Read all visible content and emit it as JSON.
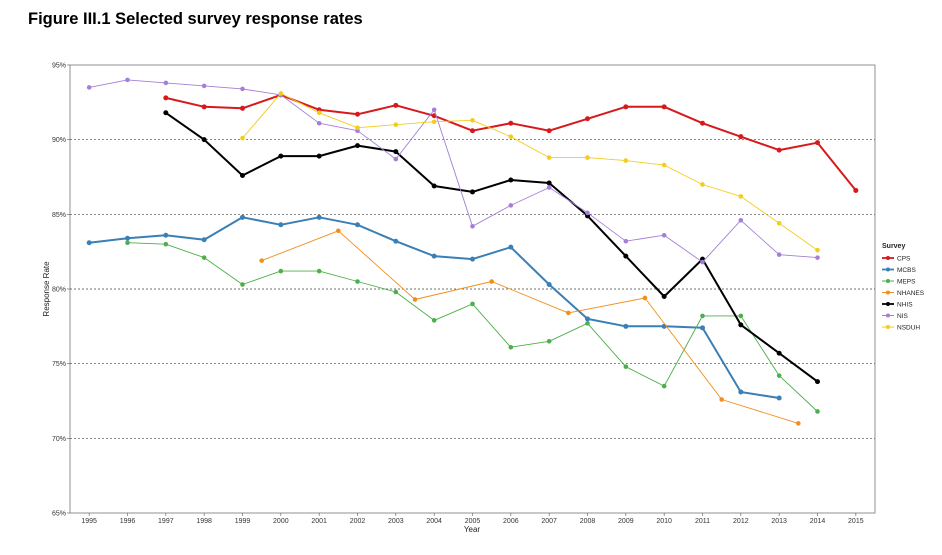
{
  "figure_title": "Figure III.1 Selected survey response rates",
  "chart_data": {
    "type": "line",
    "title": "Figure III.1 Selected survey response rates",
    "xlabel": "Year",
    "ylabel": "Response Rate",
    "xlim": [
      1994.5,
      2015.5
    ],
    "ylim": [
      65,
      95
    ],
    "x_ticks": [
      "1995",
      "1996",
      "1997",
      "1998",
      "1999",
      "2000",
      "2001",
      "2002",
      "2003",
      "2004",
      "2005",
      "2006",
      "2007",
      "2008",
      "2009",
      "2010",
      "2011",
      "2012",
      "2013",
      "2014",
      "2015"
    ],
    "y_ticks": [
      {
        "value": 65,
        "label": "65%"
      },
      {
        "value": 70,
        "label": "70%"
      },
      {
        "value": 75,
        "label": "75%"
      },
      {
        "value": 80,
        "label": "80%"
      },
      {
        "value": 85,
        "label": "85%"
      },
      {
        "value": 90,
        "label": "90%"
      },
      {
        "value": 95,
        "label": "95%"
      }
    ],
    "grid": "horizontal dashed",
    "legend_title": "Survey",
    "legend_position": "right",
    "series": [
      {
        "name": "CPS",
        "color": "#d7191c",
        "thick": true,
        "points": [
          [
            1997,
            92.8
          ],
          [
            1998,
            92.2
          ],
          [
            1999,
            92.1
          ],
          [
            2000,
            93.0
          ],
          [
            2001,
            92.0
          ],
          [
            2002,
            91.7
          ],
          [
            2003,
            92.3
          ],
          [
            2004,
            91.6
          ],
          [
            2005,
            90.6
          ],
          [
            2006,
            91.1
          ],
          [
            2007,
            90.6
          ],
          [
            2008,
            91.4
          ],
          [
            2009,
            92.2
          ],
          [
            2010,
            92.2
          ],
          [
            2011,
            91.1
          ],
          [
            2012,
            90.2
          ],
          [
            2013,
            89.3
          ],
          [
            2014,
            89.8
          ],
          [
            2015,
            86.6
          ]
        ]
      },
      {
        "name": "MCBS",
        "color": "#3a7fb5",
        "thick": true,
        "points": [
          [
            1995,
            83.1
          ],
          [
            1996,
            83.4
          ],
          [
            1997,
            83.6
          ],
          [
            1998,
            83.3
          ],
          [
            1999,
            84.8
          ],
          [
            2000,
            84.3
          ],
          [
            2001,
            84.8
          ],
          [
            2002,
            84.3
          ],
          [
            2003,
            83.2
          ],
          [
            2004,
            82.2
          ],
          [
            2005,
            82.0
          ],
          [
            2006,
            82.8
          ],
          [
            2007,
            80.3
          ],
          [
            2008,
            78.0
          ],
          [
            2009,
            77.5
          ],
          [
            2010,
            77.5
          ],
          [
            2011,
            77.4
          ],
          [
            2012,
            73.1
          ],
          [
            2013,
            72.7
          ]
        ]
      },
      {
        "name": "MEPS",
        "color": "#4daf4a",
        "thick": false,
        "points": [
          [
            1996,
            83.1
          ],
          [
            1997,
            83.0
          ],
          [
            1998,
            82.1
          ],
          [
            1999,
            80.3
          ],
          [
            2000,
            81.2
          ],
          [
            2001,
            81.2
          ],
          [
            2002,
            80.5
          ],
          [
            2003,
            79.8
          ],
          [
            2004,
            77.9
          ],
          [
            2005,
            79.0
          ],
          [
            2006,
            76.1
          ],
          [
            2007,
            76.5
          ],
          [
            2008,
            77.7
          ],
          [
            2009,
            74.8
          ],
          [
            2010,
            73.5
          ],
          [
            2011,
            78.2
          ],
          [
            2012,
            78.2
          ],
          [
            2013,
            74.2
          ],
          [
            2014,
            71.8
          ]
        ]
      },
      {
        "name": "NHANES",
        "color": "#f28e1c",
        "thick": false,
        "points": [
          [
            1999.5,
            81.9
          ],
          [
            2001.5,
            83.9
          ],
          [
            2003.5,
            79.3
          ],
          [
            2005.5,
            80.5
          ],
          [
            2007.5,
            78.4
          ],
          [
            2009.5,
            79.4
          ],
          [
            2011.5,
            72.6
          ],
          [
            2013.5,
            71.0
          ]
        ]
      },
      {
        "name": "NHIS",
        "color": "#000000",
        "thick": true,
        "points": [
          [
            1997,
            91.8
          ],
          [
            1998,
            90.0
          ],
          [
            1999,
            87.6
          ],
          [
            2000,
            88.9
          ],
          [
            2001,
            88.9
          ],
          [
            2002,
            89.6
          ],
          [
            2003,
            89.2
          ],
          [
            2004,
            86.9
          ],
          [
            2005,
            86.5
          ],
          [
            2006,
            87.3
          ],
          [
            2007,
            87.1
          ],
          [
            2008,
            84.9
          ],
          [
            2009,
            82.2
          ],
          [
            2010,
            79.5
          ],
          [
            2011,
            82.0
          ],
          [
            2012,
            77.6
          ],
          [
            2013,
            75.7
          ],
          [
            2014,
            73.8
          ]
        ]
      },
      {
        "name": "NIS",
        "color": "#a57fd6",
        "thick": false,
        "points": [
          [
            1995,
            93.5
          ],
          [
            1996,
            94.0
          ],
          [
            1997,
            93.8
          ],
          [
            1998,
            93.6
          ],
          [
            1999,
            93.4
          ],
          [
            2000,
            93.0
          ],
          [
            2001,
            91.1
          ],
          [
            2002,
            90.6
          ],
          [
            2003,
            88.7
          ],
          [
            2004,
            92.0
          ],
          [
            2005,
            84.2
          ],
          [
            2006,
            85.6
          ],
          [
            2007,
            86.8
          ],
          [
            2008,
            85.1
          ],
          [
            2009,
            83.2
          ],
          [
            2010,
            83.6
          ],
          [
            2011,
            81.8
          ],
          [
            2012,
            84.6
          ],
          [
            2013,
            82.3
          ],
          [
            2014,
            82.1
          ]
        ]
      },
      {
        "name": "NSDUH",
        "color": "#f2cd1c",
        "thick": false,
        "points": [
          [
            1999,
            90.1
          ],
          [
            2000,
            93.1
          ],
          [
            2001,
            91.8
          ],
          [
            2002,
            90.8
          ],
          [
            2003,
            91.0
          ],
          [
            2004,
            91.2
          ],
          [
            2005,
            91.3
          ],
          [
            2006,
            90.2
          ],
          [
            2007,
            88.8
          ],
          [
            2008,
            88.8
          ],
          [
            2009,
            88.6
          ],
          [
            2010,
            88.3
          ],
          [
            2011,
            87.0
          ],
          [
            2012,
            86.2
          ],
          [
            2013,
            84.4
          ],
          [
            2014,
            82.6
          ]
        ]
      }
    ]
  }
}
